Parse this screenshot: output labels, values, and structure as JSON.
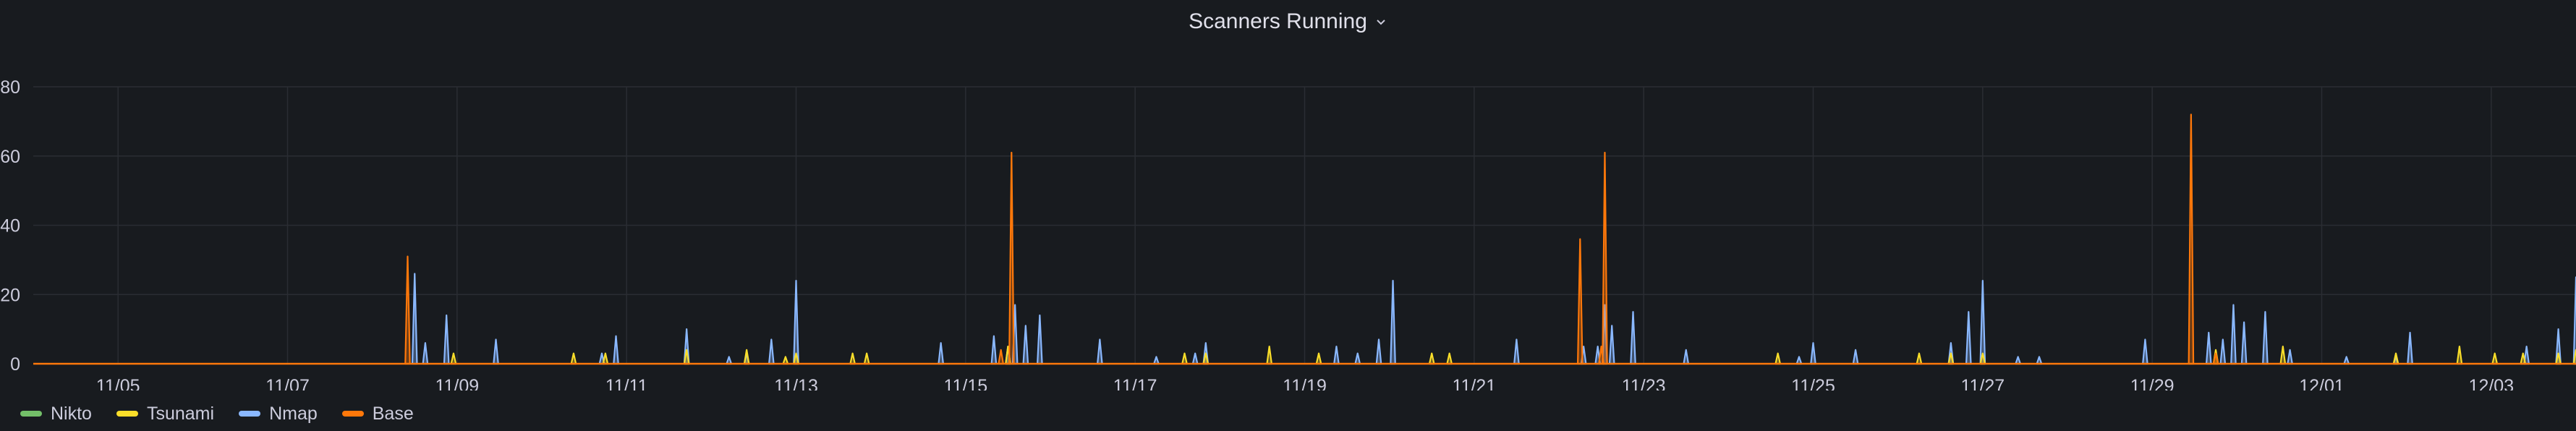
{
  "panel": {
    "title": "Scanners Running"
  },
  "chart_data": {
    "type": "area",
    "title": "Scanners Running",
    "x_start": "11/04",
    "x_end": "12/04",
    "x_ticks": [
      "11/05",
      "11/07",
      "11/09",
      "11/11",
      "11/13",
      "11/15",
      "11/17",
      "11/19",
      "11/21",
      "11/23",
      "11/25",
      "11/27",
      "11/29",
      "12/01",
      "12/03"
    ],
    "ylim": [
      0,
      80
    ],
    "y_ticks": [
      0,
      20,
      40,
      60,
      80
    ],
    "y_tick_labels": [
      "0",
      "20",
      "40",
      "60",
      "80"
    ],
    "grid": true,
    "legend_position": "bottom-left",
    "series": [
      {
        "name": "Nikto",
        "color": "#73bf69",
        "points": []
      },
      {
        "name": "Tsunami",
        "color": "#fade2a",
        "points": [
          [
            "11/08 23:00",
            3
          ],
          [
            "11/10 09:00",
            3
          ],
          [
            "11/10 18:00",
            3
          ],
          [
            "11/11 17:00",
            4
          ],
          [
            "11/12 10:00",
            4
          ],
          [
            "11/12 21:00",
            2
          ],
          [
            "11/13 00:00",
            3
          ],
          [
            "11/13 16:00",
            3
          ],
          [
            "11/13 20:00",
            3
          ],
          [
            "11/15 12:00",
            5
          ],
          [
            "11/17 14:00",
            3
          ],
          [
            "11/17 20:00",
            3
          ],
          [
            "11/18 14:00",
            5
          ],
          [
            "11/19 04:00",
            3
          ],
          [
            "11/20 12:00",
            3
          ],
          [
            "11/20 17:00",
            3
          ],
          [
            "11/24 14:00",
            3
          ],
          [
            "11/26 06:00",
            3
          ],
          [
            "11/26 15:00",
            3
          ],
          [
            "11/27 00:00",
            3
          ],
          [
            "11/29 18:00",
            4
          ],
          [
            "11/30 13:00",
            5
          ],
          [
            "12/01 21:00",
            3
          ],
          [
            "12/02 15:00",
            5
          ],
          [
            "12/03 01:00",
            3
          ],
          [
            "12/03 09:00",
            3
          ],
          [
            "12/03 19:00",
            3
          ],
          [
            "12/04 00:00",
            4
          ]
        ]
      },
      {
        "name": "Nmap",
        "color": "#8ab8ff",
        "points": [
          [
            "11/08 12:00",
            26
          ],
          [
            "11/08 15:00",
            6
          ],
          [
            "11/08 21:00",
            14
          ],
          [
            "11/09 11:00",
            7
          ],
          [
            "11/10 17:00",
            3
          ],
          [
            "11/10 21:00",
            8
          ],
          [
            "11/11 17:00",
            10
          ],
          [
            "11/12 05:00",
            2
          ],
          [
            "11/12 10:00",
            3
          ],
          [
            "11/12 17:00",
            7
          ],
          [
            "11/13 00:00",
            24
          ],
          [
            "11/14 17:00",
            6
          ],
          [
            "11/15 08:00",
            8
          ],
          [
            "11/15 12:00",
            5
          ],
          [
            "11/15 14:00",
            17
          ],
          [
            "11/15 17:00",
            11
          ],
          [
            "11/15 21:00",
            14
          ],
          [
            "11/16 14:00",
            7
          ],
          [
            "11/17 06:00",
            2
          ],
          [
            "11/17 17:00",
            3
          ],
          [
            "11/17 20:00",
            6
          ],
          [
            "11/19 09:00",
            5
          ],
          [
            "11/19 15:00",
            3
          ],
          [
            "11/19 21:00",
            7
          ],
          [
            "11/20 01:00",
            24
          ],
          [
            "11/21 12:00",
            7
          ],
          [
            "11/22 07:00",
            5
          ],
          [
            "11/22 11:00",
            5
          ],
          [
            "11/22 13:00",
            17
          ],
          [
            "11/22 15:00",
            11
          ],
          [
            "11/22 21:00",
            15
          ],
          [
            "11/23 12:00",
            4
          ],
          [
            "11/24 20:00",
            2
          ],
          [
            "11/25 00:00",
            6
          ],
          [
            "11/25 12:00",
            4
          ],
          [
            "11/26 15:00",
            6
          ],
          [
            "11/26 20:00",
            15
          ],
          [
            "11/27 00:00",
            24
          ],
          [
            "11/27 10:00",
            2
          ],
          [
            "11/27 16:00",
            2
          ],
          [
            "11/28 22:00",
            7
          ],
          [
            "11/29 16:00",
            9
          ],
          [
            "11/29 20:00",
            7
          ],
          [
            "11/29 23:00",
            17
          ],
          [
            "11/30 02:00",
            12
          ],
          [
            "11/30 08:00",
            15
          ],
          [
            "11/30 15:00",
            4
          ],
          [
            "12/01 07:00",
            2
          ],
          [
            "12/01 21:00",
            2
          ],
          [
            "12/02 01:00",
            9
          ],
          [
            "12/03 10:00",
            5
          ],
          [
            "12/03 19:00",
            10
          ],
          [
            "12/04 00:00",
            25
          ]
        ]
      },
      {
        "name": "Base",
        "color": "#ff780a",
        "points": [
          [
            "11/08 10:00",
            31
          ],
          [
            "11/15 10:00",
            4
          ],
          [
            "11/15 13:00",
            61
          ],
          [
            "11/22 06:00",
            36
          ],
          [
            "11/22 12:00",
            5
          ],
          [
            "11/22 13:00",
            61
          ],
          [
            "11/29 11:00",
            72
          ],
          [
            "11/29 18:00",
            3
          ]
        ]
      }
    ]
  }
}
